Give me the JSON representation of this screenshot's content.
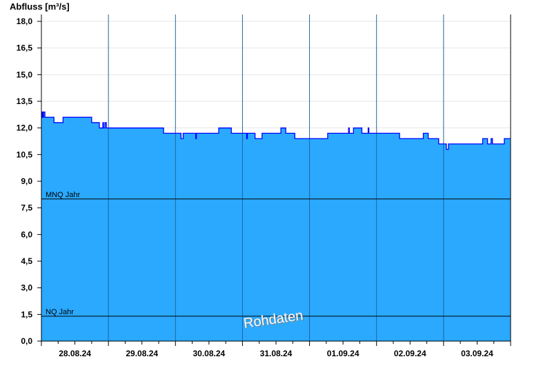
{
  "chart_data": {
    "type": "area",
    "ylabel": "Abfluss [m³/s]",
    "ylim": [
      0,
      18
    ],
    "yticks": [
      "0,0",
      "1,5",
      "3,0",
      "4,5",
      "6,0",
      "7,5",
      "9,0",
      "10,5",
      "12,0",
      "13,5",
      "15,0",
      "16,5",
      "18,0"
    ],
    "xlim": [
      "28.08.24 00:00",
      "04.09.24 00:00"
    ],
    "xticks": [
      "28.08.24",
      "29.08.24",
      "30.08.24",
      "31.08.24",
      "01.09.24",
      "02.09.24",
      "03.09.24"
    ],
    "grid": true,
    "watermark": "Rohdaten",
    "fill_color": "#2aa9ff",
    "line_color": "#0000ff",
    "reference_lines": [
      {
        "label": "MNQ Jahr",
        "value": 8.0
      },
      {
        "label": "NQ Jahr",
        "value": 1.4
      }
    ],
    "series": [
      {
        "step": true,
        "points": [
          [
            "28.08.24 00:00",
            12.6
          ],
          [
            "28.08.24 00:15",
            12.9
          ],
          [
            "28.08.24 00:30",
            12.6
          ],
          [
            "28.08.24 00:45",
            12.9
          ],
          [
            "28.08.24 01:15",
            12.6
          ],
          [
            "28.08.24 04:30",
            12.3
          ],
          [
            "28.08.24 07:45",
            12.6
          ],
          [
            "28.08.24 18:00",
            12.3
          ],
          [
            "28.08.24 20:45",
            12.0
          ],
          [
            "28.08.24 22:00",
            12.3
          ],
          [
            "28.08.24 22:15",
            12.0
          ],
          [
            "28.08.24 22:45",
            12.3
          ],
          [
            "28.08.24 23:15",
            12.0
          ],
          [
            "29.08.24 19:45",
            11.7
          ],
          [
            "30.08.24 02:00",
            11.4
          ],
          [
            "30.08.24 02:45",
            11.7
          ],
          [
            "30.08.24 07:15",
            11.4
          ],
          [
            "30.08.24 07:30",
            11.7
          ],
          [
            "30.08.24 15:30",
            12.0
          ],
          [
            "30.08.24 20:00",
            11.7
          ],
          [
            "31.08.24 01:30",
            11.4
          ],
          [
            "31.08.24 01:45",
            11.7
          ],
          [
            "31.08.24 04:30",
            11.4
          ],
          [
            "31.08.24 07:00",
            11.7
          ],
          [
            "31.08.24 13:45",
            12.0
          ],
          [
            "31.08.24 15:30",
            11.7
          ],
          [
            "31.08.24 18:45",
            11.4
          ],
          [
            "01.09.24 06:30",
            11.7
          ],
          [
            "01.09.24 14:00",
            12.0
          ],
          [
            "01.09.24 14:15",
            11.7
          ],
          [
            "01.09.24 15:45",
            12.0
          ],
          [
            "01.09.24 18:45",
            11.7
          ],
          [
            "01.09.24 21:00",
            12.0
          ],
          [
            "01.09.24 21:15",
            11.7
          ],
          [
            "02.09.24 08:15",
            11.4
          ],
          [
            "02.09.24 16:45",
            11.7
          ],
          [
            "02.09.24 18:30",
            11.4
          ],
          [
            "02.09.24 22:15",
            11.1
          ],
          [
            "03.09.24 01:00",
            10.8
          ],
          [
            "03.09.24 01:45",
            11.1
          ],
          [
            "03.09.24 14:00",
            11.4
          ],
          [
            "03.09.24 15:45",
            11.1
          ],
          [
            "03.09.24 17:00",
            11.4
          ],
          [
            "03.09.24 17:30",
            11.1
          ],
          [
            "03.09.24 21:45",
            11.4
          ],
          [
            "04.09.24 00:00",
            11.4
          ]
        ]
      }
    ]
  }
}
